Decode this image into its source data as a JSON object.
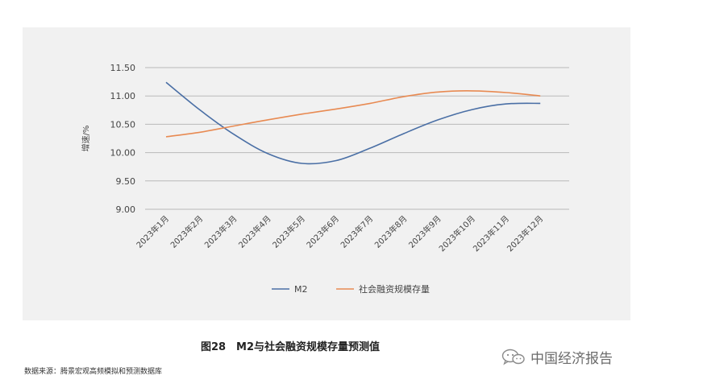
{
  "figure": {
    "caption": "图28　M2与社会融资规模存量预测值",
    "source": "数据来源：腾景宏观高频模拟和预测数据库",
    "watermark": "中国经济报告",
    "watermark_icon": "wechat-icon"
  },
  "chart_data": {
    "type": "line",
    "title": "",
    "xlabel": "",
    "ylabel": "增速/%",
    "ylim": [
      9.0,
      11.5
    ],
    "yticks": [
      "11.50",
      "11.00",
      "10.50",
      "10.00",
      "9.50",
      "9.00"
    ],
    "categories": [
      "2023年1月",
      "2023年2月",
      "2023年3月",
      "2023年4月",
      "2023年5月",
      "2023年6月",
      "2023年7月",
      "2023年8月",
      "2023年9月",
      "2023年10月",
      "2023年11月",
      "2023年12月"
    ],
    "grid": "horizontal",
    "legend_position": "bottom",
    "series": [
      {
        "name": "M2",
        "color": "#4a6fa5",
        "values": [
          11.24,
          10.75,
          10.32,
          9.98,
          9.81,
          9.86,
          10.08,
          10.34,
          10.58,
          10.76,
          10.86,
          10.87
        ]
      },
      {
        "name": "社会融资规模存量",
        "color": "#e88a52",
        "values": [
          10.28,
          10.36,
          10.47,
          10.58,
          10.68,
          10.77,
          10.87,
          10.99,
          11.07,
          11.09,
          11.06,
          11.0
        ]
      }
    ]
  }
}
